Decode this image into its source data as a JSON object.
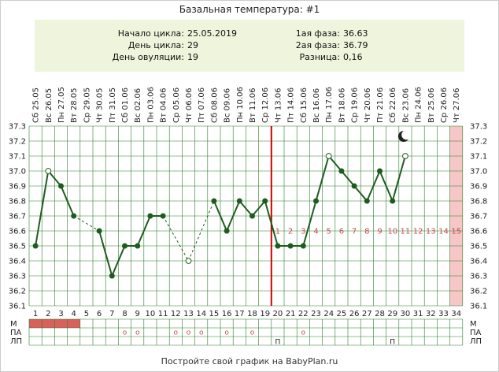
{
  "title": "Базальная температура: #1",
  "info": {
    "cycle_start_label": "Начало цикла:",
    "cycle_start": "25.05.2019",
    "cycle_day_label": "День цикла:",
    "cycle_day": "29",
    "ovulation_day_label": "День овуляции:",
    "ovulation_day": "19",
    "phase1_label": "1ая фаза:",
    "phase1": "36.63",
    "phase2_label": "2ая фаза:",
    "phase2": "36.79",
    "diff_label": "Разница:",
    "diff": "0,16"
  },
  "row_labels": [
    "М",
    "ПА",
    "ЛП"
  ],
  "footer": "Постройте свой график на BabyPlan.ru",
  "colors": {
    "line": "#1e5c1e",
    "ovulation": "#cc0000",
    "info_bg": "#eef5dc",
    "grid": "#2e7d2e",
    "phase_text": "#c0504d",
    "menses": "#d9605c",
    "future_band": "#f7c6c6"
  },
  "chart_data": {
    "type": "line",
    "ylim": [
      36.1,
      37.3
    ],
    "yticks": [
      "37.3",
      "37.2",
      "37.1",
      "37.0",
      "36.9",
      "36.8",
      "36.7",
      "36.6",
      "36.5",
      "36.4",
      "36.3",
      "36.2",
      "36.1"
    ],
    "days": [
      "1",
      "2",
      "3",
      "4",
      "5",
      "6",
      "7",
      "8",
      "9",
      "10",
      "11",
      "12",
      "13",
      "14",
      "15",
      "16",
      "17",
      "18",
      "19",
      "20",
      "21",
      "22",
      "23",
      "24",
      "25",
      "26",
      "27",
      "28",
      "29",
      "30",
      "31",
      "32",
      "33",
      "34"
    ],
    "dates": [
      "Сб 25.05",
      "Вс 26.05",
      "Пн 27.05",
      "Вт 28.05",
      "Ср 29.05",
      "Чт 30.05",
      "Пт 31.05",
      "Сб 01.06",
      "Вс 02.06",
      "Пн 03.06",
      "Вт 04.06",
      "Ср 05.06",
      "Чт 06.06",
      "Пт 07.06",
      "Сб 08.06",
      "Вс 09.06",
      "Пн 10.06",
      "Вт 11.06",
      "Ср 12.06",
      "Чт 13.06",
      "Пт 14.06",
      "Сб 15.06",
      "Вс 16.06",
      "Пн 17.06",
      "Вт 18.06",
      "Ср 19.06",
      "Чт 20.06",
      "Пт 21.06",
      "Сб 22.06",
      "Вс 23.06",
      "Пн 24.06",
      "Вт 25.06",
      "Ср 26.06",
      "Чт 27.06"
    ],
    "temps": [
      36.5,
      37.0,
      36.9,
      36.7,
      null,
      36.6,
      36.3,
      36.5,
      36.5,
      36.7,
      36.7,
      null,
      36.4,
      null,
      36.8,
      36.6,
      36.8,
      36.7,
      36.8,
      36.5,
      36.5,
      36.5,
      36.8,
      37.1,
      37.0,
      36.9,
      36.8,
      37.0,
      36.8,
      37.1
    ],
    "dashed_segments": [
      [
        4,
        6
      ],
      [
        11,
        13
      ],
      [
        13,
        15
      ]
    ],
    "open_points": [
      2,
      13,
      24,
      30
    ],
    "ovulation_day": 19,
    "phase_labels": [
      "1",
      "2",
      "3",
      "4",
      "5",
      "6",
      "7",
      "8",
      "9",
      "10",
      "11",
      "12",
      "13",
      "14",
      "15"
    ],
    "future_band_day": 34,
    "moon_icon": "crescent-moon-icon",
    "menses_days": [
      1,
      2,
      3,
      4
    ],
    "pa_days": [
      8,
      9,
      12,
      13,
      14,
      16,
      18,
      22
    ],
    "pa_symbol": "o",
    "lp_days": [
      20,
      29
    ],
    "lp_symbol": "П"
  }
}
